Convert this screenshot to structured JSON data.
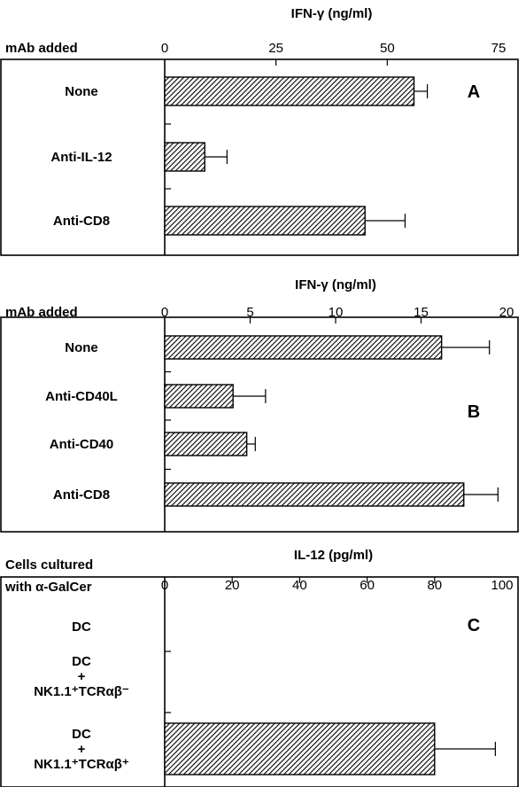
{
  "chart_data": [
    {
      "type": "bar",
      "orientation": "horizontal",
      "panel_letter": "A",
      "title": "IFN-γ (ng/ml)",
      "ylabel": "mAb added",
      "xlim": [
        0,
        75
      ],
      "ticks": [
        0,
        25,
        50,
        75
      ],
      "categories": [
        "None",
        "Anti-IL-12",
        "Anti-CD8"
      ],
      "values": [
        56,
        9,
        45
      ],
      "errors": [
        3,
        5,
        9
      ]
    },
    {
      "type": "bar",
      "orientation": "horizontal",
      "panel_letter": "B",
      "title": "IFN-γ (ng/ml)",
      "ylabel": "mAb added",
      "xlim": [
        0,
        20
      ],
      "ticks": [
        0,
        5,
        10,
        15,
        20
      ],
      "categories": [
        "None",
        "Anti-CD40L",
        "Anti-CD40",
        "Anti-CD8"
      ],
      "values": [
        16.2,
        4.0,
        4.8,
        17.5
      ],
      "errors": [
        2.8,
        1.9,
        0.5,
        2.0
      ]
    },
    {
      "type": "bar",
      "orientation": "horizontal",
      "panel_letter": "C",
      "title": "IL-12 (pg/ml)",
      "ylabel": [
        "Cells cultured",
        "with α-GalCer"
      ],
      "xlim": [
        0,
        100
      ],
      "ticks": [
        0,
        20,
        40,
        60,
        80,
        100
      ],
      "categories": [
        [
          "DC"
        ],
        [
          "DC",
          "+",
          "NK1.1⁺TCRαβ⁻"
        ],
        [
          "DC",
          "+",
          "NK1.1⁺TCRαβ⁺"
        ]
      ],
      "values": [
        0,
        0,
        80
      ],
      "errors": [
        0,
        0,
        18
      ]
    }
  ]
}
